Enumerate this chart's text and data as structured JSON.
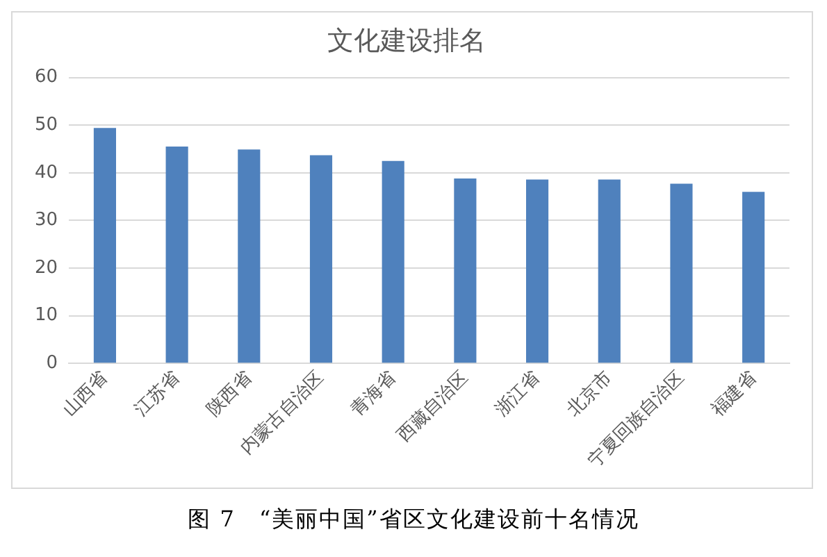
{
  "chart_data": {
    "type": "bar",
    "title": "文化建设排名",
    "categories": [
      "山西省",
      "江苏省",
      "陕西省",
      "内蒙古自治区",
      "青海省",
      "西藏自治区",
      "浙江省",
      "北京市",
      "宁夏回族自治区",
      "福建省"
    ],
    "values": [
      49.4,
      45.5,
      44.9,
      43.7,
      42.5,
      38.8,
      38.6,
      38.6,
      37.7,
      36.0
    ],
    "color": "#4f81bd",
    "ylim": [
      0,
      60
    ],
    "yticks": [
      0,
      10,
      20,
      30,
      40,
      50,
      60
    ],
    "grid": "y",
    "legend": false,
    "annotations": [
      "图 7　“美丽中国”省区文化建设前十名情况"
    ]
  }
}
